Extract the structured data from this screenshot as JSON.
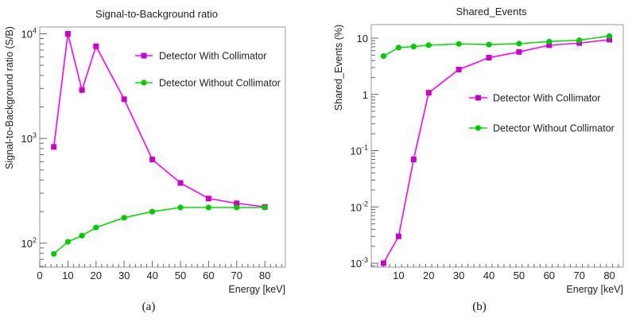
{
  "colors": {
    "with": "#ff00ff",
    "without": "#00e000",
    "frame": "#999999",
    "marker_with": "#cc00cc",
    "marker_without": "#00cc00"
  },
  "chart_data": [
    {
      "type": "line",
      "title": "Signal-to-Background ratio",
      "xlabel": "Energy [keV]",
      "ylabel": "Signal-to-Background ratio (S/B)",
      "caption": "(a)",
      "yscale": "log",
      "xlim": [
        0,
        87.3
      ],
      "ylim": [
        59,
        11600
      ],
      "xticks": [
        "0",
        "10",
        "20",
        "30",
        "40",
        "50",
        "60",
        "70",
        "80"
      ],
      "yticks": [
        {
          "value": 100,
          "base": "10",
          "exp": "2"
        },
        {
          "value": 1000,
          "base": "10",
          "exp": "3"
        },
        {
          "value": 10000,
          "base": "10",
          "exp": "4"
        }
      ],
      "legend_position": "top-right",
      "x": [
        5,
        10,
        15,
        20,
        30,
        40,
        50,
        60,
        70,
        80
      ],
      "series": [
        {
          "name": "Detector With Collimator",
          "marker": "square",
          "values": [
            830,
            10000,
            2900,
            7600,
            2370,
            630,
            376,
            267,
            240,
            222
          ]
        },
        {
          "name": "Detector Without Collimator",
          "marker": "circle",
          "values": [
            79,
            103,
            118,
            141,
            175,
            200,
            219,
            219,
            219,
            219
          ]
        }
      ]
    },
    {
      "type": "line",
      "title": "Shared_Events",
      "xlabel": "Energy [keV]",
      "ylabel": "Shared_Events (%)",
      "caption": "(b)",
      "yscale": "log",
      "xlim": [
        0.93,
        84.6
      ],
      "ylim": [
        0.00085,
        17.4
      ],
      "xticks": [
        "10",
        "20",
        "30",
        "40",
        "50",
        "60",
        "70",
        "80"
      ],
      "yticks": [
        {
          "value": 0.001,
          "base": "10",
          "exp": "-3"
        },
        {
          "value": 0.01,
          "base": "10",
          "exp": "-2"
        },
        {
          "value": 0.1,
          "base": "10",
          "exp": "-1"
        },
        {
          "value": 1,
          "base": "1",
          "exp": ""
        },
        {
          "value": 10,
          "base": "10",
          "exp": ""
        }
      ],
      "legend_position": "middle-right",
      "x": [
        5,
        10,
        15,
        20,
        30,
        40,
        50,
        60,
        70,
        80
      ],
      "series": [
        {
          "name": "Detector With Collimator",
          "marker": "square",
          "values": [
            0.001,
            0.003,
            0.07,
            1.07,
            2.77,
            4.5,
            5.7,
            7.5,
            8.2,
            9.4
          ]
        },
        {
          "name": "Detector Without Collimator",
          "marker": "circle",
          "values": [
            4.8,
            6.8,
            7.1,
            7.5,
            7.9,
            7.7,
            8.0,
            8.7,
            9.2,
            10.9
          ]
        }
      ]
    }
  ]
}
